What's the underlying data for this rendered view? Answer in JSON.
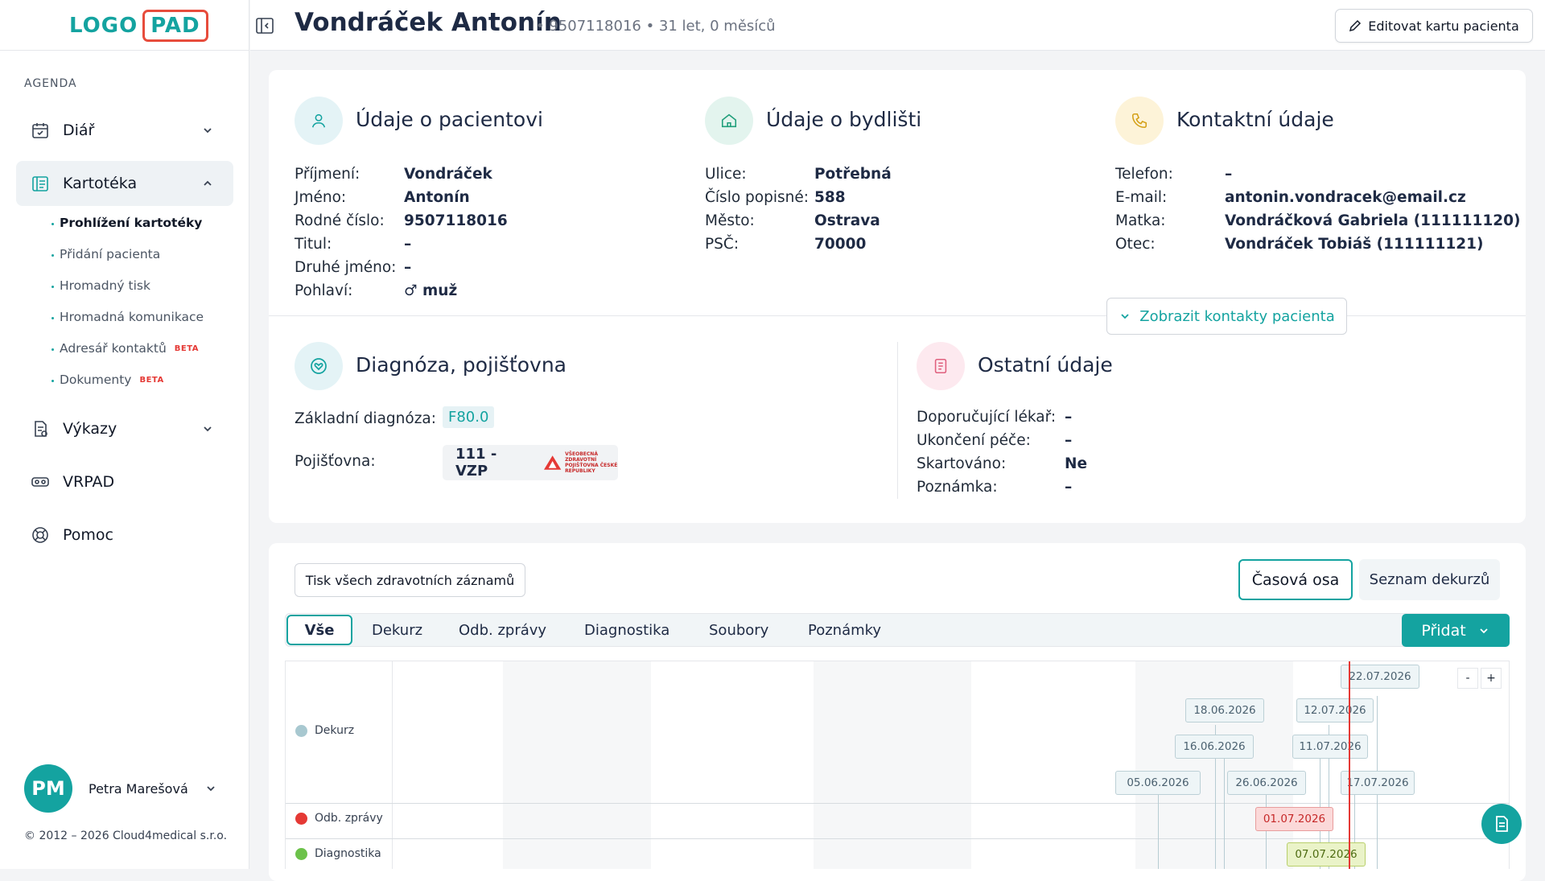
{
  "logo": {
    "part1": "LOGO",
    "part2": "PAD"
  },
  "sidebar": {
    "section": "AGENDA",
    "items": [
      {
        "label": "Diář"
      },
      {
        "label": "Kartotéka"
      },
      {
        "label": "Výkazy"
      },
      {
        "label": "VRPAD"
      },
      {
        "label": "Pomoc"
      }
    ],
    "subitems": [
      {
        "label": "Prohlížení kartotéky"
      },
      {
        "label": "Přidání pacienta"
      },
      {
        "label": "Hromadný tisk"
      },
      {
        "label": "Hromadná komunikace"
      },
      {
        "label": "Adresář kontaktů",
        "badge": "BETA"
      },
      {
        "label": "Dokumenty",
        "badge": "BETA"
      }
    ],
    "user": {
      "initials": "PM",
      "name": "Petra Marešová"
    },
    "copyright": "© 2012 – 2026 Cloud4medical s.r.o."
  },
  "header": {
    "name": "Vondráček Antonín",
    "meta": "• 9507118016 • 31 let, 0 měsíců",
    "edit_label": "Editovat kartu pacienta"
  },
  "patient": {
    "title": "Údaje o pacientovi",
    "fields": [
      {
        "k": "Příjmení:",
        "v": "Vondráček"
      },
      {
        "k": "Jméno:",
        "v": "Antonín"
      },
      {
        "k": "Rodné číslo:",
        "v": "9507118016"
      },
      {
        "k": "Titul:",
        "v": "–"
      },
      {
        "k": "Druhé jméno:",
        "v": "–"
      },
      {
        "k": "Pohlaví:",
        "v": "♂ muž"
      }
    ]
  },
  "address": {
    "title": "Údaje o bydlišti",
    "fields": [
      {
        "k": "Ulice:",
        "v": "Potřebná"
      },
      {
        "k": "Číslo popisné:",
        "v": "588"
      },
      {
        "k": "Město:",
        "v": "Ostrava"
      },
      {
        "k": "PSČ:",
        "v": "70000"
      }
    ]
  },
  "contact": {
    "title": "Kontaktní údaje",
    "fields": [
      {
        "k": "Telefon:",
        "v": "–"
      },
      {
        "k": "E-mail:",
        "v": "antonin.vondracek@email.cz"
      },
      {
        "k": "Matka:",
        "v": "Vondráčková Gabriela (111111120)"
      },
      {
        "k": "Otec:",
        "v": "Vondráček Tobiáš (111111121)"
      }
    ],
    "show_contacts": "Zobrazit kontakty pacienta"
  },
  "diagnosis": {
    "title": "Diagnóza, pojišťovna",
    "diag_label": "Základní diagnóza:",
    "diag_value": "F80.0",
    "ins_label": "Pojišťovna:",
    "ins_value": "111 - VZP",
    "ins_logo_text": "VŠEOBECNÁ ZDRAVOTNÍ POJIŠŤOVNA ČESKÉ REPUBLIKY"
  },
  "other": {
    "title": "Ostatní údaje",
    "fields": [
      {
        "k": "Doporučující lékař:",
        "v": "–"
      },
      {
        "k": "Ukončení péče:",
        "v": "–"
      },
      {
        "k": "Skartováno:",
        "v": "Ne"
      },
      {
        "k": "Poznámka:",
        "v": "–"
      }
    ]
  },
  "records": {
    "print_all": "Tisk všech zdravotních záznamů",
    "view_timeline": "Časová osa",
    "view_list": "Seznam dekurzů",
    "tabs": [
      "Vše",
      "Dekurz",
      "Odb. zprávy",
      "Diagnostika",
      "Soubory",
      "Poznámky"
    ],
    "add_label": "Přidat",
    "zoom_out": "-",
    "zoom_in": "+"
  },
  "timeline": {
    "rows": [
      {
        "label": "Dekurz",
        "color": "#a8c8d0"
      },
      {
        "label": "Odb. zprávy",
        "color": "#e53935"
      },
      {
        "label": "Diagnostika",
        "color": "#6cc24a"
      }
    ],
    "dekurz_dates": [
      "22.07.2026",
      "18.06.2026",
      "12.07.2026",
      "16.06.2026",
      "11.07.2026",
      "05.06.2026",
      "26.06.2026",
      "17.07.2026"
    ],
    "odb_dates": [
      "01.07.2026"
    ],
    "diag_dates": [
      "07.07.2026"
    ]
  },
  "colors": {
    "accent": "#14a3a0",
    "today_line": "#e53935"
  }
}
